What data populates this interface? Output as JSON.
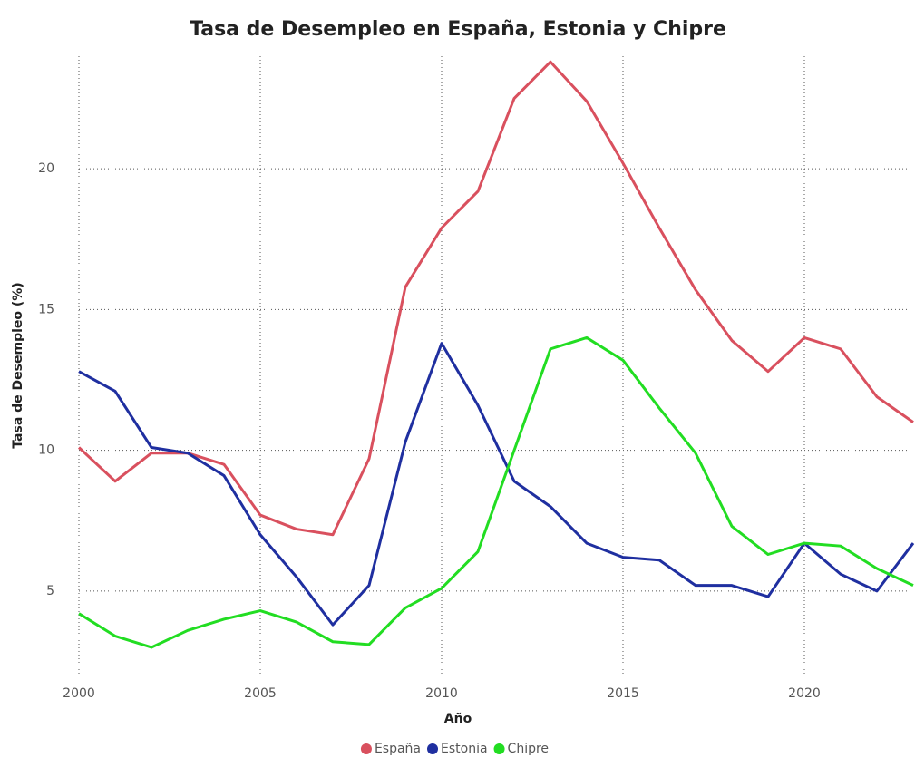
{
  "chart_data": {
    "type": "line",
    "title": "Tasa de Desempleo en España, Estonia y Chipre",
    "x_label": "Año",
    "y_label": "Tasa de Desempleo (%)",
    "x": [
      2000,
      2001,
      2002,
      2003,
      2004,
      2005,
      2006,
      2007,
      2008,
      2009,
      2010,
      2011,
      2012,
      2013,
      2014,
      2015,
      2016,
      2017,
      2018,
      2019,
      2020,
      2021,
      2022,
      2023
    ],
    "series": [
      {
        "name": "España",
        "color": "#d9505e",
        "values": [
          10.1,
          8.9,
          9.9,
          9.9,
          9.5,
          7.7,
          7.2,
          7.0,
          9.7,
          15.8,
          17.9,
          19.2,
          22.5,
          23.8,
          22.4,
          20.2,
          17.9,
          15.7,
          13.9,
          12.8,
          14.0,
          13.6,
          11.9,
          11.0
        ]
      },
      {
        "name": "Estonia",
        "color": "#1f2fa0",
        "values": [
          12.8,
          12.1,
          10.1,
          9.9,
          9.1,
          7.0,
          5.5,
          3.8,
          5.2,
          10.3,
          13.8,
          11.6,
          8.9,
          8.0,
          6.7,
          6.2,
          6.1,
          5.2,
          5.2,
          4.8,
          6.7,
          5.6,
          5.0,
          6.7
        ]
      },
      {
        "name": "Chipre",
        "color": "#22dd22",
        "values": [
          4.2,
          3.4,
          3.0,
          3.6,
          4.0,
          4.3,
          3.9,
          3.2,
          3.1,
          4.4,
          5.1,
          6.4,
          10.0,
          13.6,
          14.0,
          13.2,
          11.5,
          9.9,
          7.3,
          6.3,
          6.7,
          6.6,
          5.8,
          5.2
        ]
      }
    ],
    "xlim": [
      2000,
      2023
    ],
    "xticks": [
      2000,
      2005,
      2010,
      2015,
      2020
    ],
    "ylim": [
      2,
      24
    ],
    "yticks": [
      5,
      10,
      15,
      20
    ],
    "grid": true,
    "legend": "bottom"
  }
}
